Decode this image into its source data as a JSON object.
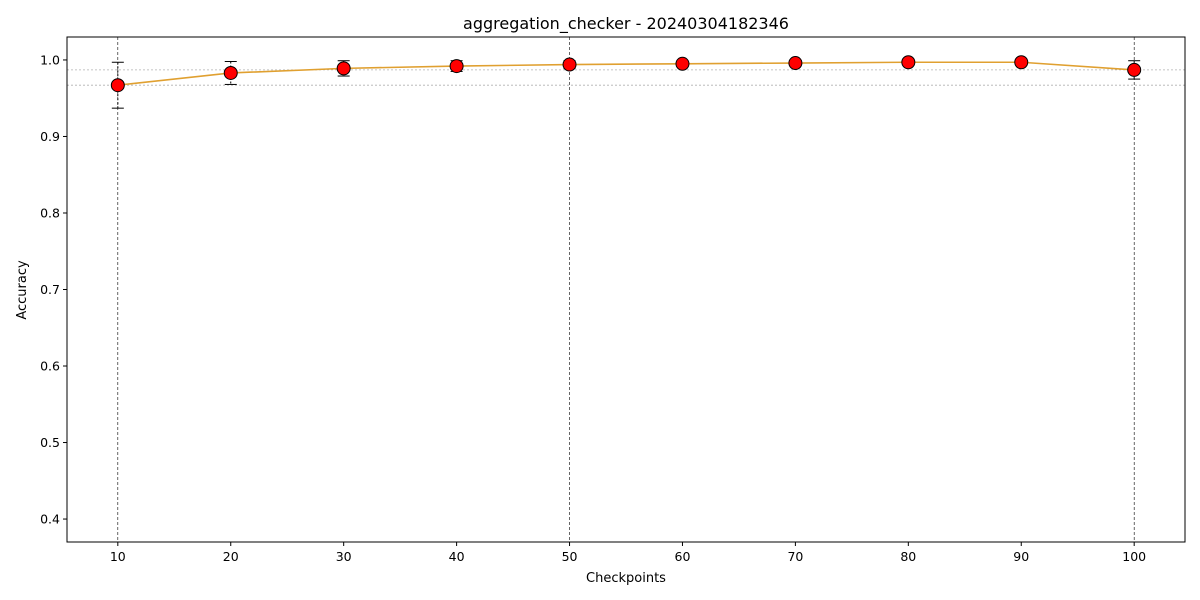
{
  "chart_data": {
    "type": "line",
    "title": "aggregation_checker - 20240304182346",
    "xlabel": "Checkpoints",
    "ylabel": "Accuracy",
    "xlim": [
      5.5,
      104.5
    ],
    "ylim": [
      0.37,
      1.03
    ],
    "xticks": [
      10,
      20,
      30,
      40,
      50,
      60,
      70,
      80,
      90,
      100
    ],
    "yticks": [
      0.4,
      0.5,
      0.6,
      0.7,
      0.8,
      0.9,
      1.0
    ],
    "x": [
      10,
      20,
      30,
      40,
      50,
      60,
      70,
      80,
      90,
      100
    ],
    "series": [
      {
        "values": [
          0.967,
          0.983,
          0.989,
          0.992,
          0.994,
          0.995,
          0.996,
          0.997,
          0.997,
          0.987
        ],
        "error": [
          0.03,
          0.015,
          0.01,
          0.007,
          0.005,
          0.004,
          0.004,
          0.003,
          0.003,
          0.012
        ],
        "line_color": "#e0a030",
        "marker_color": "#ff0000",
        "marker_edge_color": "#000000"
      }
    ],
    "vertical_lines_x": [
      10,
      50,
      100
    ],
    "horizontal_lines_y": [
      0.967,
      0.987
    ],
    "grid": false,
    "legend": false
  }
}
